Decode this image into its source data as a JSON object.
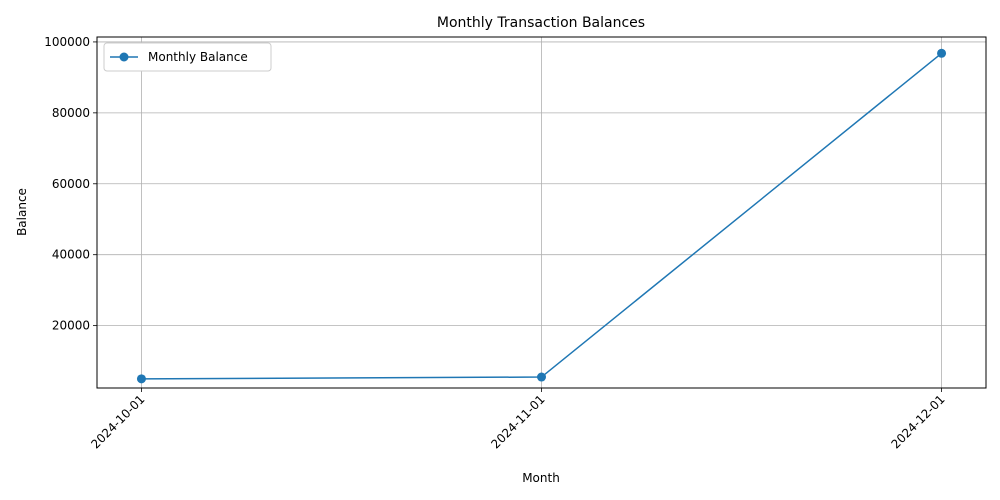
{
  "chart_data": {
    "type": "line",
    "title": "Monthly Transaction Balances",
    "xlabel": "Month",
    "ylabel": "Balance",
    "categories": [
      "2024-10-01",
      "2024-11-01",
      "2024-12-01"
    ],
    "series": [
      {
        "name": "Monthly Balance",
        "values": [
          5000,
          5500,
          96800
        ],
        "color": "#1f77b4",
        "marker": "circle"
      }
    ],
    "y_ticks": [
      20000,
      40000,
      60000,
      80000,
      100000
    ],
    "ylim": [
      2410,
      101390
    ],
    "grid": true,
    "legend_position": "top-left",
    "x_tick_rotation_deg": 45
  }
}
